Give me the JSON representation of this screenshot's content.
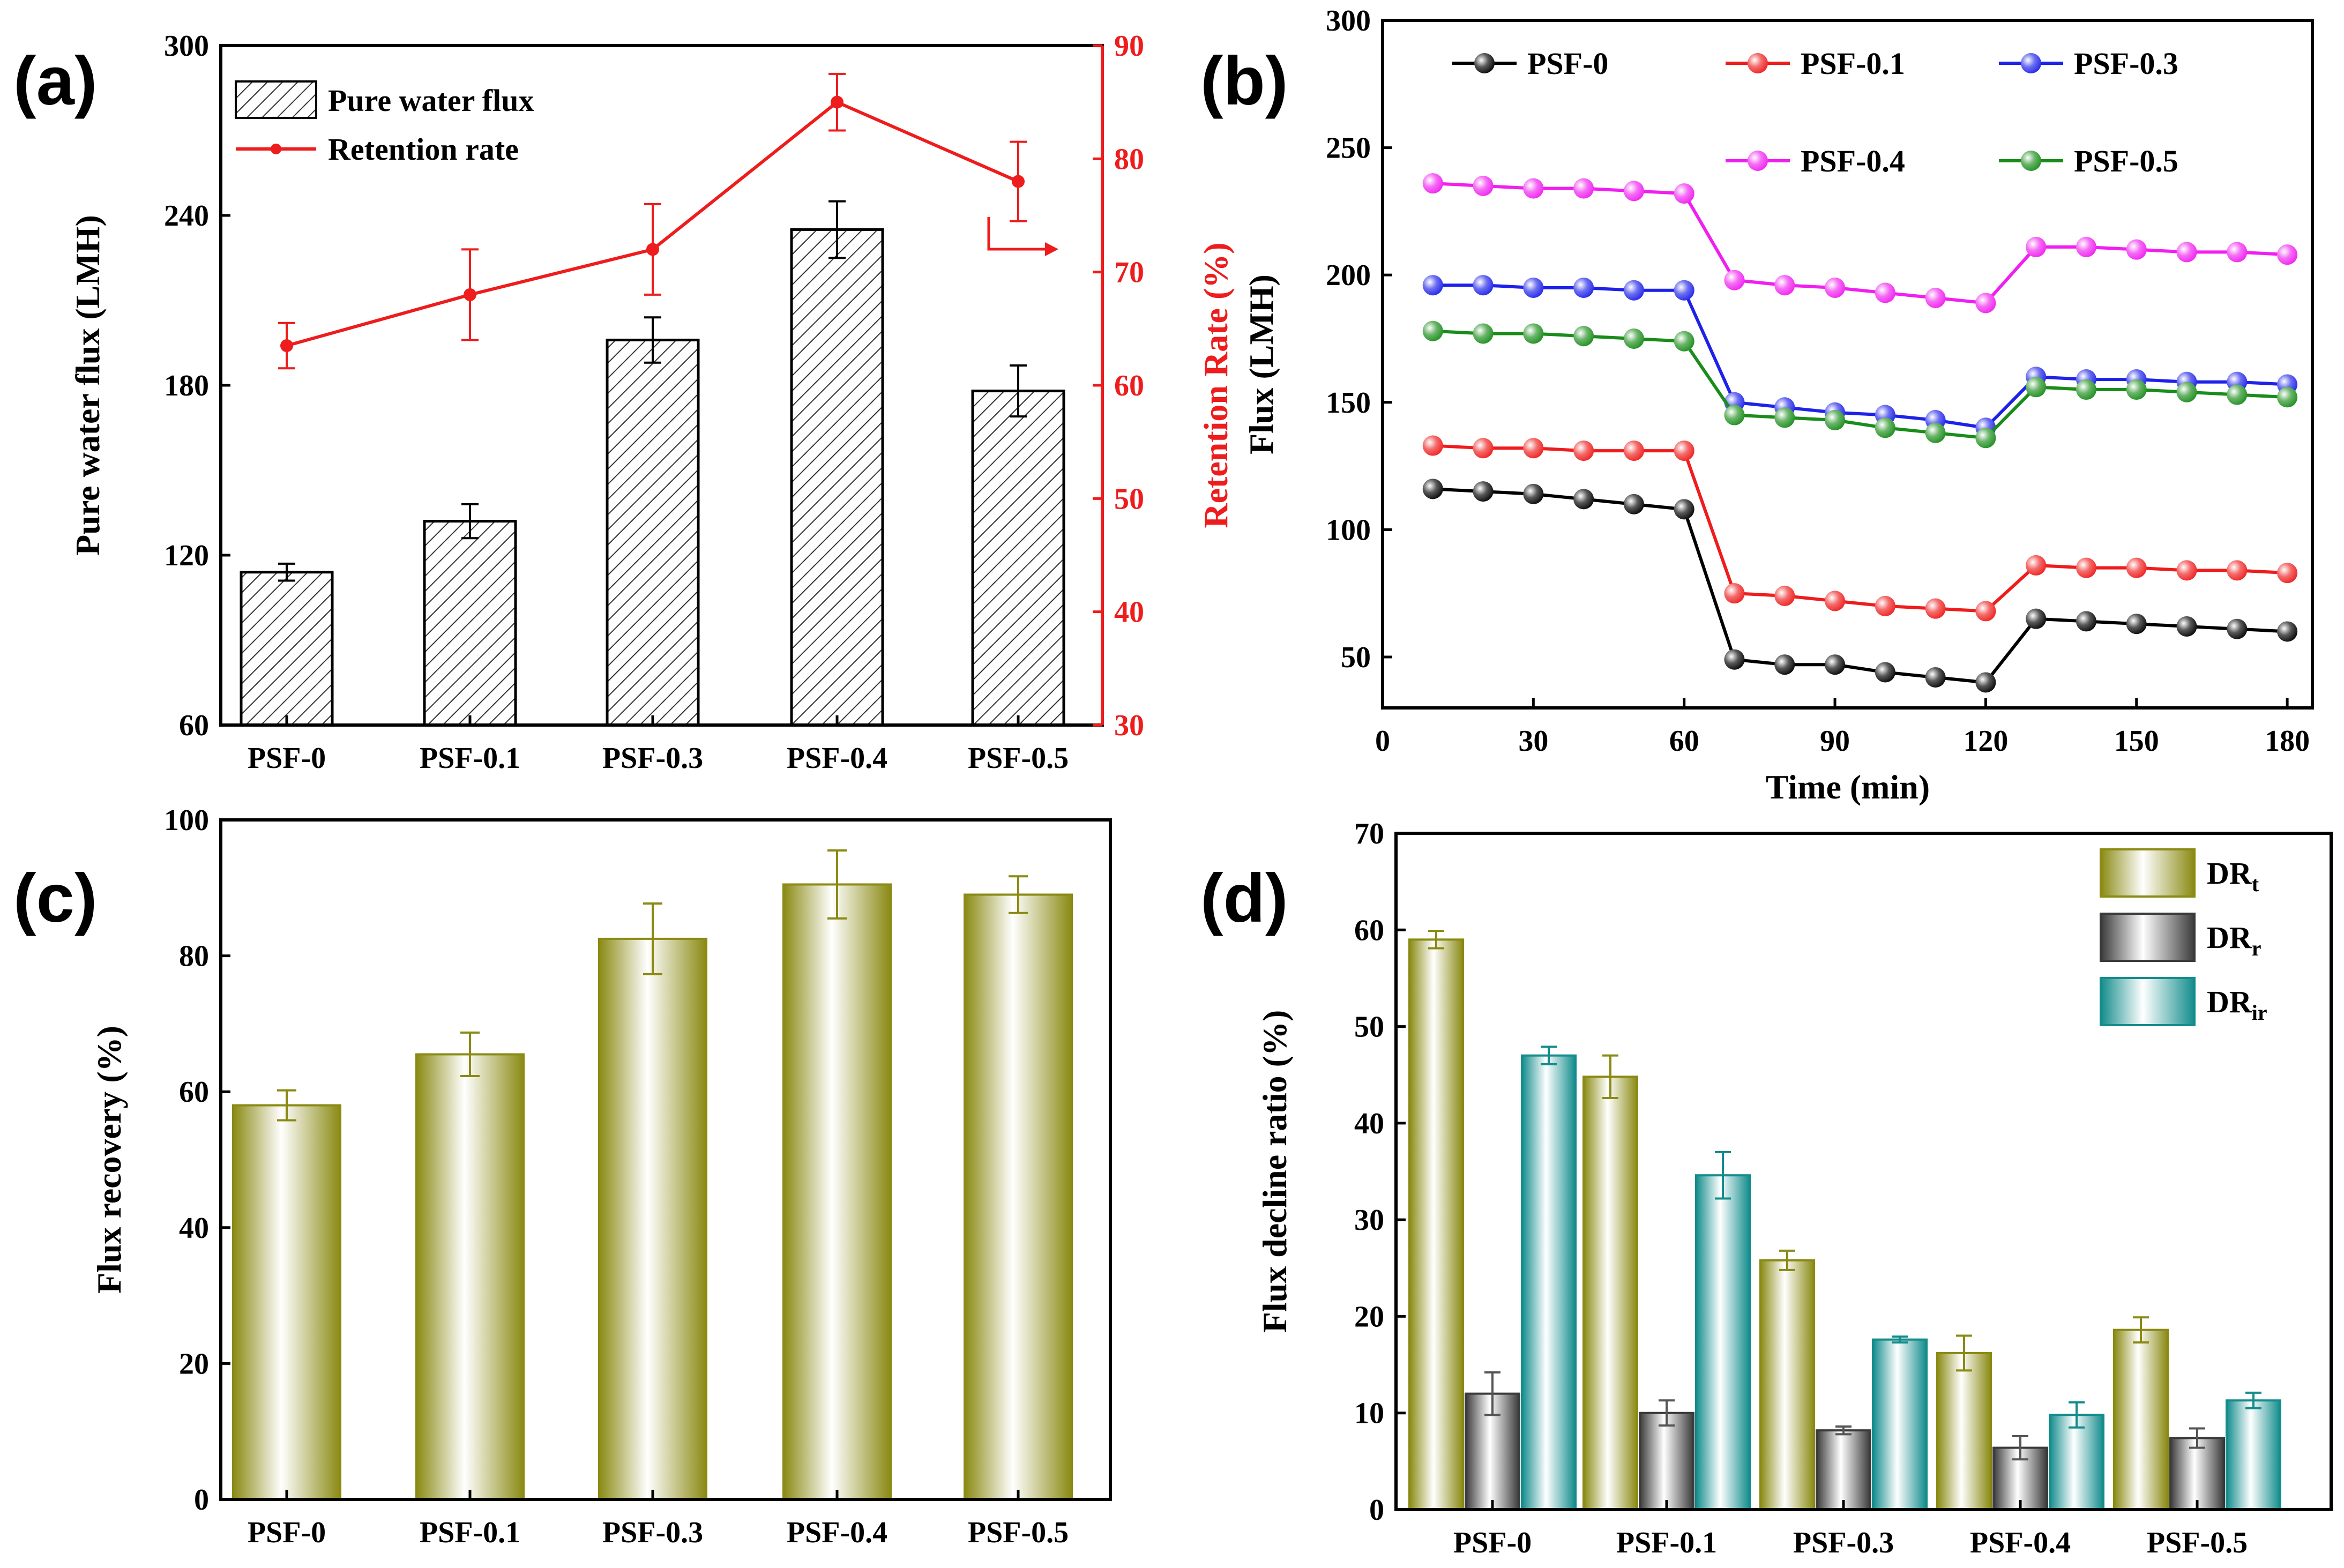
{
  "chart_data": [
    {
      "panel": "(a)",
      "type": "bar",
      "categories": [
        "PSF-0",
        "PSF-0.1",
        "PSF-0.3",
        "PSF-0.4",
        "PSF-0.5"
      ],
      "series": [
        {
          "name": "Pure water flux",
          "type": "bar",
          "axis": "left",
          "values": [
            114,
            132,
            196,
            235,
            178
          ],
          "errors": [
            3,
            6,
            8,
            10,
            9
          ]
        },
        {
          "name": "Retention rate",
          "type": "line",
          "axis": "right",
          "values": [
            63.5,
            68,
            72,
            85,
            78
          ],
          "errors": [
            2,
            4,
            4,
            2.5,
            3.5
          ]
        }
      ],
      "ylabel": "Pure water flux (LMH)",
      "ylim": [
        60,
        300
      ],
      "yticks": [
        "60",
        "120",
        "180",
        "240",
        "300"
      ],
      "y2label": "Retention Rate (%)",
      "y2lim": [
        30,
        90
      ],
      "y2ticks": [
        "30",
        "40",
        "50",
        "60",
        "70",
        "80",
        "90"
      ],
      "colors": {
        "bar_fill": "#ffffff",
        "bar_hatch": "#333333",
        "line": "#ee1c1c"
      }
    },
    {
      "panel": "(b)",
      "type": "line",
      "x": [
        10,
        20,
        30,
        40,
        50,
        60,
        70,
        80,
        90,
        100,
        110,
        120,
        130,
        140,
        150,
        160,
        170,
        180
      ],
      "series": [
        {
          "name": "PSF-0",
          "color": "#000000",
          "values": [
            116,
            115,
            114,
            112,
            110,
            108,
            49,
            47,
            47,
            44,
            42,
            40,
            65,
            64,
            63,
            62,
            61,
            60
          ]
        },
        {
          "name": "PSF-0.1",
          "color": "#ee1c1c",
          "values": [
            133,
            132,
            132,
            131,
            131,
            131,
            75,
            74,
            72,
            70,
            69,
            68,
            86,
            85,
            85,
            84,
            84,
            83
          ]
        },
        {
          "name": "PSF-0.3",
          "color": "#1e22e8",
          "values": [
            196,
            196,
            195,
            195,
            194,
            194,
            150,
            148,
            146,
            145,
            143,
            140,
            160,
            159,
            159,
            158,
            158,
            157
          ]
        },
        {
          "name": "PSF-0.4",
          "color": "#f01ef0",
          "values": [
            236,
            235,
            234,
            234,
            233,
            232,
            198,
            196,
            195,
            193,
            191,
            189,
            211,
            211,
            210,
            209,
            209,
            208
          ]
        },
        {
          "name": "PSF-0.5",
          "color": "#1a8c1a",
          "values": [
            178,
            177,
            177,
            176,
            175,
            174,
            145,
            144,
            143,
            140,
            138,
            136,
            156,
            155,
            155,
            154,
            153,
            152
          ]
        }
      ],
      "xlabel": "Time (min)",
      "ylabel": "Flux (LMH)",
      "xlim": [
        0,
        185
      ],
      "ylim": [
        30,
        300
      ],
      "xticks": [
        "0",
        "30",
        "60",
        "90",
        "120",
        "150",
        "180"
      ],
      "yticks": [
        "50",
        "100",
        "150",
        "200",
        "250",
        "300"
      ]
    },
    {
      "panel": "(c)",
      "type": "bar",
      "categories": [
        "PSF-0",
        "PSF-0.1",
        "PSF-0.3",
        "PSF-0.4",
        "PSF-0.5"
      ],
      "values": [
        58,
        65.5,
        82.5,
        90.5,
        89
      ],
      "errors": [
        2.2,
        3.2,
        5.2,
        5,
        2.7
      ],
      "ylabel": "Flux recovery (%)",
      "ylim": [
        0,
        100
      ],
      "yticks": [
        "0",
        "20",
        "40",
        "60",
        "80",
        "100"
      ],
      "colors": {
        "bar": "#8a8a14"
      }
    },
    {
      "panel": "(d)",
      "type": "bar",
      "categories": [
        "PSF-0",
        "PSF-0.1",
        "PSF-0.3",
        "PSF-0.4",
        "PSF-0.5"
      ],
      "series": [
        {
          "name": "DR",
          "subscript": "t",
          "color": "#8a8a14",
          "values": [
            59,
            44.8,
            25.8,
            16.2,
            18.6
          ],
          "errors": [
            0.9,
            2.2,
            1,
            1.8,
            1.3
          ]
        },
        {
          "name": "DR",
          "subscript": "r",
          "color": "#3a3a3a",
          "values": [
            12,
            10,
            8.2,
            6.4,
            7.4
          ],
          "errors": [
            2.2,
            1.3,
            0.4,
            1.2,
            1
          ]
        },
        {
          "name": "DR",
          "subscript": "ir",
          "color": "#138c8c",
          "values": [
            47,
            34.6,
            17.6,
            9.8,
            11.3
          ],
          "errors": [
            0.9,
            2.4,
            0.3,
            1.3,
            0.8
          ]
        }
      ],
      "ylabel": "Flux decline ratio (%)",
      "ylim": [
        0,
        70
      ],
      "yticks": [
        "0",
        "10",
        "20",
        "30",
        "40",
        "50",
        "60",
        "70"
      ]
    }
  ]
}
